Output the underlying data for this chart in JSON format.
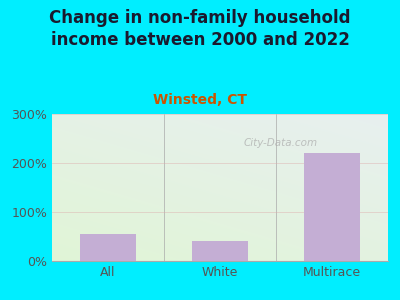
{
  "title": "Change in non-family household\nincome between 2000 and 2022",
  "subtitle": "Winsted, CT",
  "categories": [
    "All",
    "White",
    "Multirace"
  ],
  "values": [
    55,
    40,
    220
  ],
  "bar_color": "#c4aed4",
  "title_color": "#1a1a2e",
  "subtitle_color": "#cc5500",
  "tick_label_color": "#555555",
  "bg_outer": "#00eeff",
  "grid_color": "#ddaaaa",
  "watermark": "City-Data.com",
  "ylim": [
    0,
    300
  ],
  "yticks": [
    0,
    100,
    200,
    300
  ],
  "title_fontsize": 12,
  "subtitle_fontsize": 10,
  "tick_fontsize": 9,
  "bar_width": 0.5
}
